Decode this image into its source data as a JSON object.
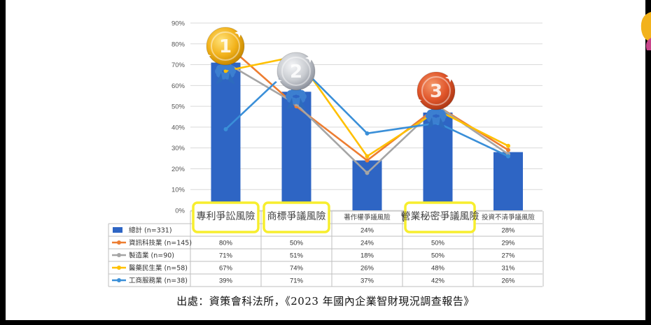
{
  "chart_data": {
    "type": "bar",
    "categories": [
      "專利爭訟風險",
      "商標爭議風險",
      "著作權爭議風險",
      "營業秘密爭議風險",
      "投資不清爭議風險"
    ],
    "yticks": [
      "0%",
      "10%",
      "20%",
      "30%",
      "40%",
      "50%",
      "60%",
      "70%",
      "80%",
      "90%"
    ],
    "ylim": [
      0,
      90
    ],
    "grid": true,
    "series": [
      {
        "name": "總計 (n=331)",
        "kind": "bar",
        "color": "#2E65C4",
        "values": [
          71,
          57,
          24,
          47,
          28
        ],
        "labels": [
          "71%",
          "57%",
          "24%",
          "47%",
          "28%"
        ]
      },
      {
        "name": "資訊科技業 (n=145)",
        "kind": "line",
        "color": "#ED7D31",
        "values": [
          80,
          50,
          24,
          50,
          29
        ],
        "labels": [
          "80%",
          "50%",
          "24%",
          "50%",
          "29%"
        ]
      },
      {
        "name": "製造業 (n=90)",
        "kind": "line",
        "color": "#A5A5A5",
        "values": [
          71,
          51,
          18,
          50,
          27
        ],
        "labels": [
          "71%",
          "51%",
          "18%",
          "50%",
          "27%"
        ]
      },
      {
        "name": "醫藥民生業 (n=58)",
        "kind": "line",
        "color": "#FFC000",
        "values": [
          67,
          74,
          26,
          48,
          31
        ],
        "labels": [
          "67%",
          "74%",
          "26%",
          "48%",
          "31%"
        ]
      },
      {
        "name": "工商服務業 (n=38)",
        "kind": "line",
        "color": "#3A8FD8",
        "values": [
          39,
          71,
          37,
          42,
          26
        ],
        "labels": [
          "39%",
          "71%",
          "37%",
          "42%",
          "26%"
        ]
      }
    ],
    "highlighted_categories": [
      0,
      1,
      3
    ],
    "medals": [
      {
        "rank": "1",
        "category_index": 0,
        "color": "#F2B21B"
      },
      {
        "rank": "2",
        "category_index": 1,
        "color": "#C9CCD1"
      },
      {
        "rank": "3",
        "category_index": 3,
        "color": "#E0552A"
      }
    ]
  },
  "source": "出處：資策會科法所，《2023 年國內企業智財現況調查報告》"
}
